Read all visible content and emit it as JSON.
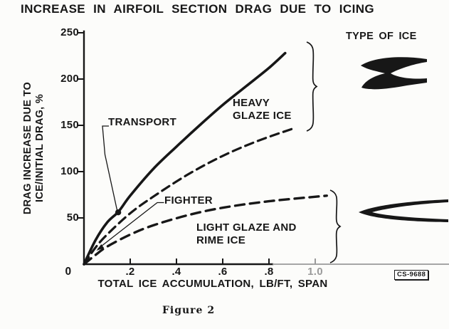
{
  "figure": {
    "title": "INCREASE IN AIRFOIL SECTION DRAG DUE TO ICING",
    "caption": "Figure 2",
    "code_stamp": "CS-9688",
    "legend_heading": "TYPE OF ICE"
  },
  "axes": {
    "xlabel": "TOTAL ICE ACCUMULATION, LB/FT, SPAN",
    "ylabel_line1": "DRAG INCREASE DUE TO",
    "ylabel_line2": "ICE/INITIAL DRAG, %",
    "x_ticks": [
      ".2",
      ".4",
      ".6",
      ".8",
      "1.0"
    ],
    "y_ticks": [
      "250",
      "200",
      "150",
      "100",
      "50"
    ],
    "origin_label": "0"
  },
  "annotations": {
    "transport": "TRANSPORT",
    "fighter": "FIGHTER",
    "heavy_line1": "HEAVY",
    "heavy_line2": "GLAZE ICE",
    "light_line1": "LIGHT GLAZE AND",
    "light_line2": "RIME ICE"
  },
  "chart_data": {
    "type": "line",
    "title": "INCREASE IN AIRFOIL SECTION DRAG DUE TO ICING",
    "xlabel": "TOTAL ICE ACCUMULATION, LB/FT, SPAN",
    "ylabel": "DRAG INCREASE DUE TO ICE/INITIAL DRAG, %",
    "xlim": [
      0,
      1.15
    ],
    "ylim": [
      0,
      250
    ],
    "x_tick_values": [
      0,
      0.2,
      0.4,
      0.6,
      0.8,
      1.0
    ],
    "y_tick_values": [
      0,
      50,
      100,
      150,
      200,
      250
    ],
    "grid": false,
    "legend_position": "right",
    "series": [
      {
        "name": "TRANSPORT — HEAVY GLAZE ICE",
        "style": "solid",
        "points": [
          [
            0,
            0
          ],
          [
            0.05,
            26
          ],
          [
            0.1,
            45
          ],
          [
            0.15,
            57
          ],
          [
            0.2,
            74
          ],
          [
            0.3,
            103
          ],
          [
            0.4,
            127
          ],
          [
            0.5,
            150
          ],
          [
            0.6,
            172
          ],
          [
            0.7,
            192
          ],
          [
            0.8,
            212
          ],
          [
            0.87,
            228
          ]
        ]
      },
      {
        "name": "FIGHTER — HEAVY GLAZE ICE",
        "style": "dashed",
        "points": [
          [
            0,
            0
          ],
          [
            0.05,
            18
          ],
          [
            0.1,
            32
          ],
          [
            0.2,
            55
          ],
          [
            0.3,
            73
          ],
          [
            0.45,
            97
          ],
          [
            0.6,
            117
          ],
          [
            0.75,
            133
          ],
          [
            0.91,
            147
          ]
        ]
      },
      {
        "name": "LIGHT GLAZE AND RIME ICE",
        "style": "dashed",
        "points": [
          [
            0,
            0
          ],
          [
            0.05,
            10
          ],
          [
            0.1,
            19
          ],
          [
            0.2,
            32
          ],
          [
            0.3,
            42
          ],
          [
            0.45,
            53
          ],
          [
            0.6,
            61
          ],
          [
            0.8,
            68
          ],
          [
            1.05,
            74
          ]
        ]
      }
    ],
    "marker_point": {
      "series": "TRANSPORT — HEAVY GLAZE ICE",
      "x": 0.148,
      "y": 56
    }
  },
  "colors": {
    "ink": "#171717",
    "faded_ink": "#9a9a9a",
    "paper": "#fcfcfa"
  }
}
